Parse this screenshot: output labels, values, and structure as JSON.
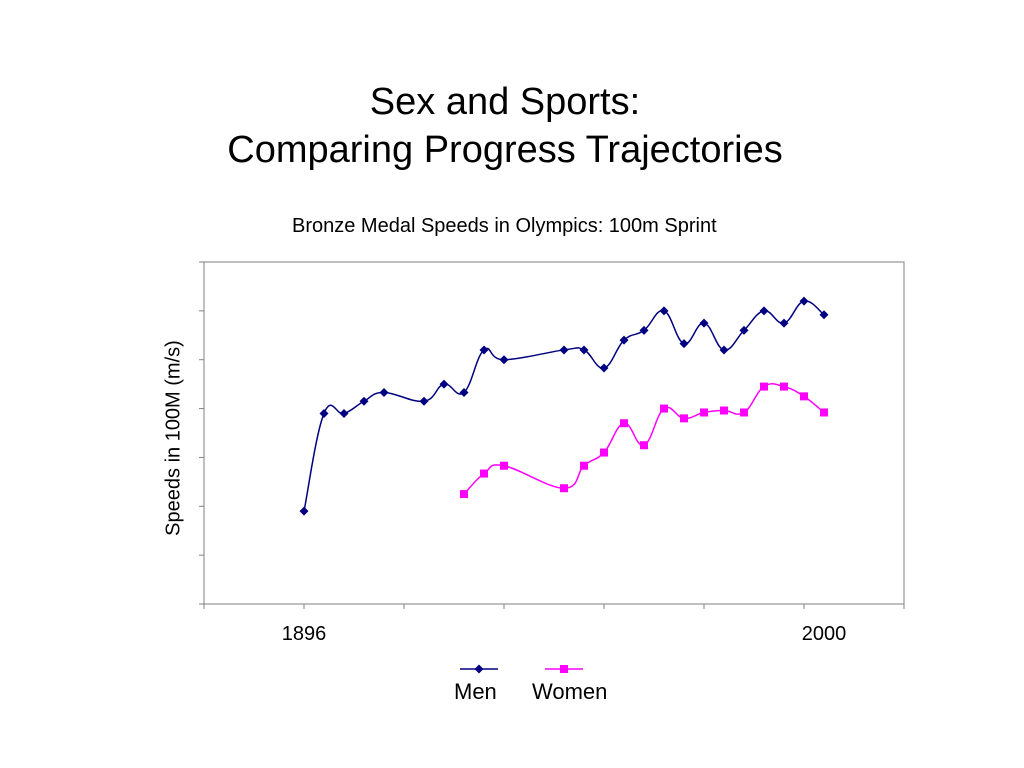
{
  "slide": {
    "title_line1": "Sex and Sports:",
    "title_line2": "Comparing Progress Trajectories"
  },
  "chart_data": {
    "type": "line",
    "title": "Bronze Medal Speeds in Olympics: 100m Sprint",
    "xlabel": "",
    "ylabel": "Speeds in 100M (m/s)",
    "x_tick_labels": [
      "1896",
      "2000"
    ],
    "xlim": [
      1876,
      2016
    ],
    "ylim": [
      0,
      7
    ],
    "grid": false,
    "legend_position": "bottom",
    "series": [
      {
        "name": "Men",
        "color": "#000080",
        "marker": "diamond",
        "x": [
          1896,
          1900,
          1904,
          1908,
          1912,
          1920,
          1924,
          1928,
          1932,
          1936,
          1948,
          1952,
          1956,
          1960,
          1964,
          1968,
          1972,
          1976,
          1980,
          1984,
          1988,
          1992,
          1996,
          2000
        ],
        "y": [
          1.9,
          3.9,
          3.9,
          4.15,
          4.33,
          4.15,
          4.5,
          4.33,
          5.2,
          5.0,
          5.2,
          5.2,
          4.83,
          5.4,
          5.6,
          6.0,
          5.33,
          5.75,
          5.2,
          5.6,
          6.0,
          5.75,
          6.2,
          5.92
        ]
      },
      {
        "name": "Women",
        "color": "#ff00ff",
        "marker": "square",
        "x": [
          1928,
          1932,
          1936,
          1948,
          1952,
          1956,
          1960,
          1964,
          1968,
          1972,
          1976,
          1980,
          1984,
          1988,
          1992,
          1996,
          2000
        ],
        "y": [
          2.25,
          2.67,
          2.83,
          2.37,
          2.83,
          3.1,
          3.7,
          3.25,
          4.0,
          3.8,
          3.92,
          3.96,
          3.92,
          4.45,
          4.45,
          4.25,
          3.92
        ]
      }
    ]
  }
}
